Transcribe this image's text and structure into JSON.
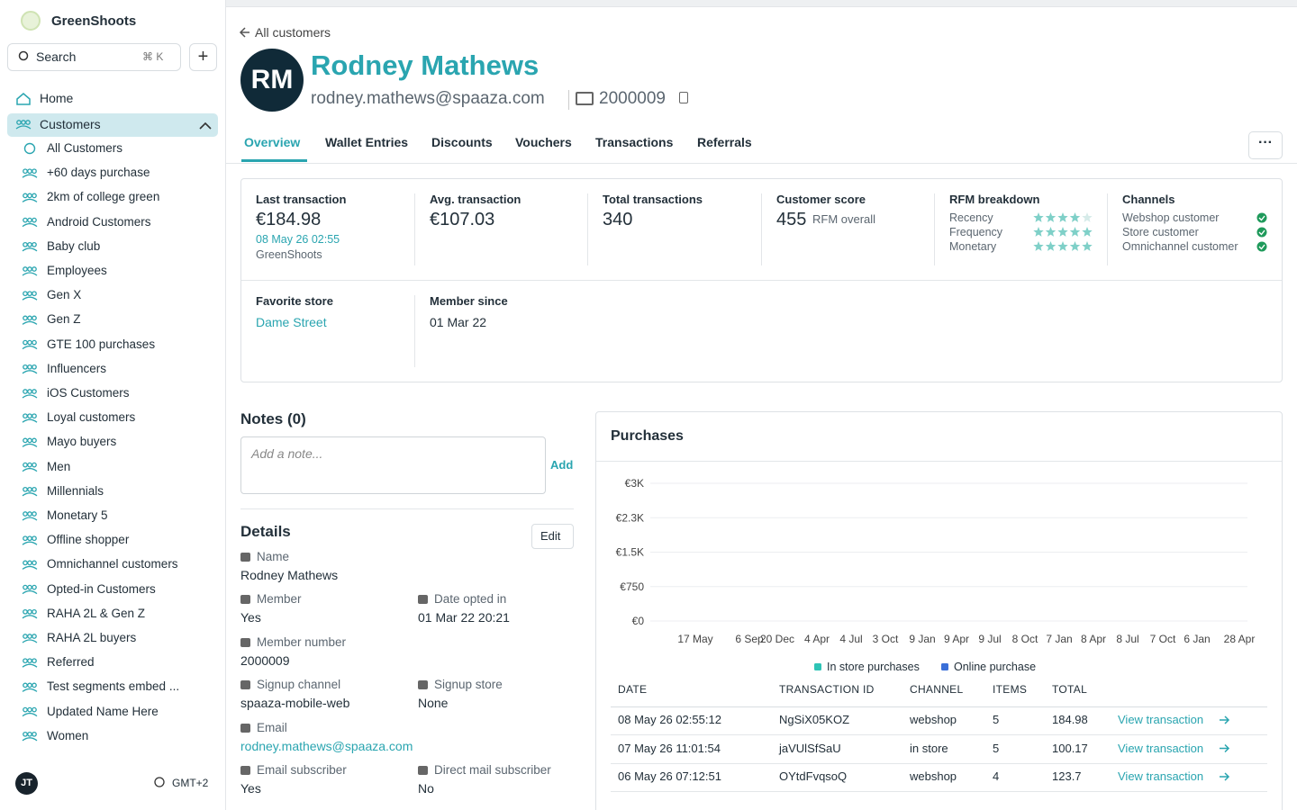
{
  "sidebar": {
    "brand": "GreenShoots",
    "search": "Search",
    "shortcut": "⌘ K",
    "home": "Home",
    "customers": "Customers",
    "segments": [
      "All Customers",
      "+60 days purchase",
      "2km of college green",
      "Android Customers",
      "Baby club",
      "Employees",
      "Gen X",
      "Gen Z",
      "GTE 100 purchases",
      "Influencers",
      "iOS Customers",
      "Loyal customers",
      "Mayo buyers",
      "Men",
      "Millennials",
      "Monetary 5",
      "Offline shopper",
      "Omnichannel customers",
      "Opted-in Customers",
      "RAHA 2L & Gen Z",
      "RAHA 2L buyers",
      "Referred",
      "Test segments embed ...",
      "Updated Name Here",
      "Women"
    ],
    "user_initials": "JT",
    "timezone": "GMT+2"
  },
  "header": {
    "back": "All customers",
    "initials": "RM",
    "name": "Rodney Mathews",
    "email": "rodney.mathews@spaaza.com",
    "member_number": "2000009"
  },
  "tabs": [
    "Overview",
    "Wallet Entries",
    "Discounts",
    "Vouchers",
    "Transactions",
    "Referrals"
  ],
  "stats": {
    "last_transaction": {
      "label": "Last transaction",
      "value": "€184.98",
      "date": "08 May 26 02:55",
      "store": "GreenShoots"
    },
    "avg_transaction": {
      "label": "Avg. transaction",
      "value": "€107.03"
    },
    "total_transactions": {
      "label": "Total transactions",
      "value": "340"
    },
    "customer_score": {
      "label": "Customer score",
      "value": "455",
      "note": "RFM overall"
    },
    "rfm": {
      "label": "RFM breakdown",
      "rows": [
        {
          "name": "Recency",
          "score": 4
        },
        {
          "name": "Frequency",
          "score": 5
        },
        {
          "name": "Monetary",
          "score": 5
        }
      ]
    },
    "channels": {
      "label": "Channels",
      "rows": [
        "Webshop customer",
        "Store customer",
        "Omnichannel customer"
      ]
    },
    "favorite_store": {
      "label": "Favorite store",
      "value": "Dame Street"
    },
    "member_since": {
      "label": "Member since",
      "value": "01 Mar 22"
    }
  },
  "notes": {
    "title": "Notes (0)",
    "placeholder": "Add a note...",
    "add": "Add"
  },
  "details": {
    "title": "Details",
    "edit": "Edit",
    "fields": [
      {
        "label": "Name",
        "value": "Rodney Mathews"
      },
      {
        "label": "Member",
        "value": "Yes"
      },
      {
        "label": "Date opted in",
        "value": "01 Mar 22 20:21"
      },
      {
        "label": "Member number",
        "value": "2000009"
      },
      {
        "label": "Signup channel",
        "value": "spaaza-mobile-web"
      },
      {
        "label": "Signup store",
        "value": "None"
      },
      {
        "label": "Email",
        "value": "rodney.mathews@spaaza.com"
      },
      {
        "label": "Email subscriber",
        "value": "Yes"
      },
      {
        "label": "Direct mail subscriber",
        "value": "No"
      }
    ]
  },
  "purchases": {
    "title": "Purchases",
    "chart": {
      "ylim": [
        0,
        3000
      ],
      "yticks": [
        {
          "value": 0,
          "label": "€0"
        },
        {
          "value": 750,
          "label": "€750"
        },
        {
          "value": 1500,
          "label": "€1.5K"
        },
        {
          "value": 2250,
          "label": "€2.3K"
        },
        {
          "value": 3000,
          "label": "€3K"
        }
      ],
      "categories": [
        "17 May",
        "6 Sep",
        "20 Dec",
        "4 Apr",
        "4 Jul",
        "3 Oct",
        "9 Jan",
        "9 Apr",
        "9 Jul",
        "8 Oct",
        "7 Jan",
        "8 Apr",
        "8 Jul",
        "7 Oct",
        "6 Jan",
        "28 Apr"
      ],
      "legend": [
        {
          "name": "In store purchases",
          "color": "#2ec4b6"
        },
        {
          "name": "Online purchase",
          "color": "#3a6fd8"
        }
      ]
    },
    "table": {
      "columns": [
        "DATE",
        "TRANSACTION ID",
        "CHANNEL",
        "ITEMS",
        "TOTAL"
      ],
      "link": "View transaction",
      "rows": [
        [
          "08 May 26 02:55:12",
          "NgSiX05KOZ",
          "webshop",
          5,
          184.98
        ],
        [
          "07 May 26 11:01:54",
          "jaVUlSfSaU",
          "in store",
          5,
          100.17
        ],
        [
          "06 May 26 07:12:51",
          "OYtdFvqsoQ",
          "webshop",
          4,
          123.7
        ]
      ]
    }
  }
}
